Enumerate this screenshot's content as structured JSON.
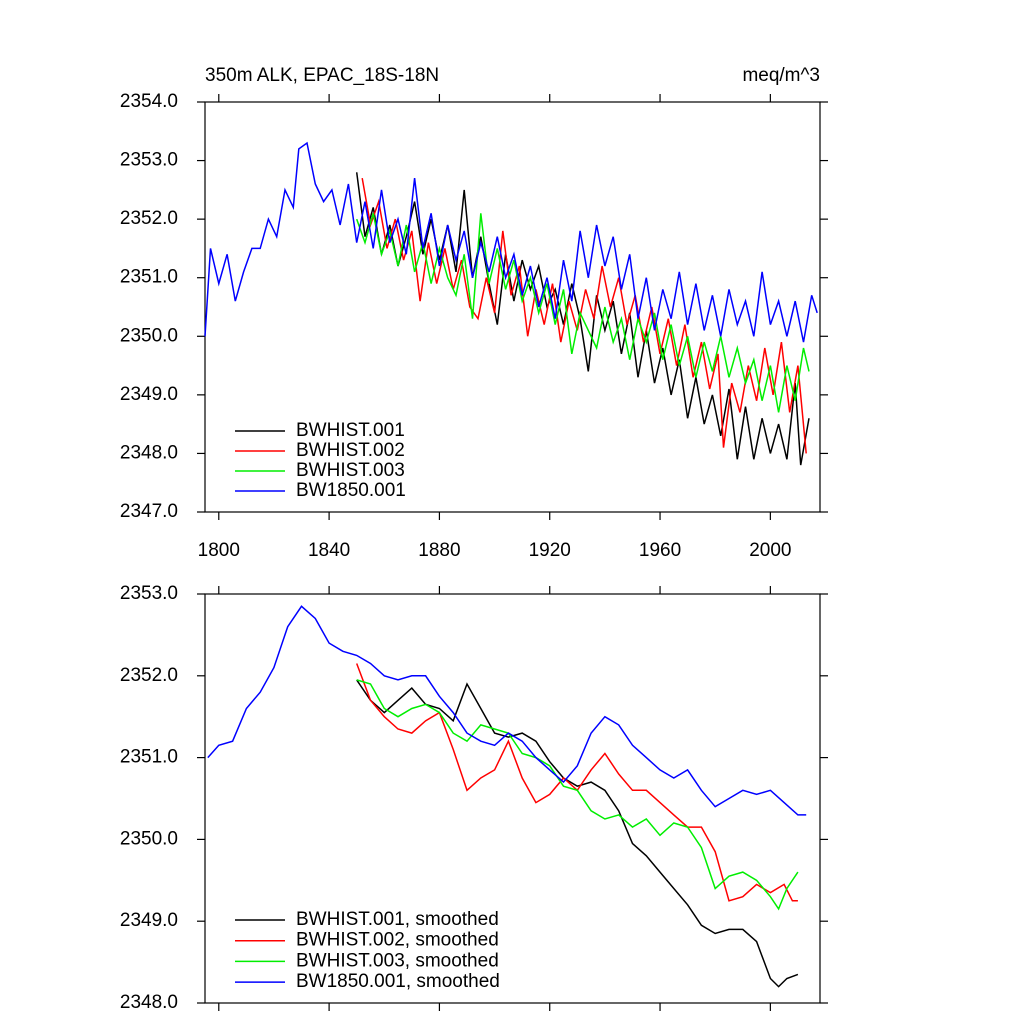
{
  "chart_data": [
    {
      "type": "line",
      "title": "350m ALK, EPAC_18S-18N",
      "units": "meq/m^3",
      "xlim": [
        1795,
        2018
      ],
      "xticks": [
        1800,
        1840,
        1880,
        1920,
        1960,
        2000
      ],
      "xtick_labels": true,
      "ylim": [
        2347,
        2354
      ],
      "yticks": [
        {
          "value": 2347,
          "label": "2347.0"
        },
        {
          "value": 2348,
          "label": "2348.0"
        },
        {
          "value": 2349,
          "label": "2349.0"
        },
        {
          "value": 2350,
          "label": "2350.0"
        },
        {
          "value": 2351,
          "label": "2351.0"
        },
        {
          "value": 2352,
          "label": "2352.0"
        },
        {
          "value": 2353,
          "label": "2353.0"
        },
        {
          "value": 2354,
          "label": "2354.0"
        }
      ],
      "legend": "lower left",
      "series": [
        {
          "name": "BWHIST.001",
          "color": "#000000",
          "x": [
            1850,
            1853,
            1856,
            1859,
            1862,
            1865,
            1868,
            1871,
            1874,
            1877,
            1880,
            1883,
            1886,
            1889,
            1892,
            1895,
            1898,
            1901,
            1904,
            1907,
            1910,
            1913,
            1916,
            1919,
            1922,
            1925,
            1928,
            1931,
            1934,
            1937,
            1940,
            1943,
            1946,
            1949,
            1952,
            1955,
            1958,
            1961,
            1964,
            1967,
            1970,
            1973,
            1976,
            1979,
            1982,
            1985,
            1988,
            1991,
            1994,
            1997,
            2000,
            2003,
            2006,
            2009,
            2011,
            2014
          ],
          "values": [
            2352.8,
            2351.7,
            2352.2,
            2351.4,
            2351.9,
            2351.2,
            2351.7,
            2352.3,
            2351.4,
            2352.0,
            2351.3,
            2351.9,
            2351.1,
            2352.5,
            2351.0,
            2351.7,
            2350.9,
            2350.2,
            2351.4,
            2350.6,
            2351.3,
            2350.8,
            2351.2,
            2350.5,
            2350.8,
            2350.2,
            2350.9,
            2350.3,
            2349.4,
            2350.7,
            2350.1,
            2350.6,
            2349.7,
            2350.4,
            2349.3,
            2350.1,
            2349.2,
            2349.8,
            2349.0,
            2349.6,
            2348.6,
            2349.3,
            2348.5,
            2349.0,
            2348.3,
            2349.1,
            2347.9,
            2348.8,
            2347.9,
            2348.6,
            2348.0,
            2348.5,
            2347.9,
            2349.2,
            2347.8,
            2348.6
          ]
        },
        {
          "name": "BWHIST.002",
          "color": "#ff0000",
          "x": [
            1852,
            1855,
            1858,
            1861,
            1864,
            1867,
            1870,
            1873,
            1876,
            1879,
            1882,
            1885,
            1888,
            1891,
            1894,
            1897,
            1900,
            1903,
            1906,
            1909,
            1912,
            1915,
            1918,
            1921,
            1924,
            1927,
            1930,
            1933,
            1936,
            1939,
            1942,
            1945,
            1948,
            1951,
            1954,
            1957,
            1960,
            1963,
            1966,
            1969,
            1972,
            1975,
            1978,
            1981,
            1983,
            1986,
            1989,
            1992,
            1995,
            1998,
            2001,
            2004,
            2007,
            2010,
            2013
          ],
          "values": [
            2352.7,
            2351.9,
            2352.3,
            2351.5,
            2352.0,
            2351.3,
            2351.8,
            2350.6,
            2351.6,
            2350.9,
            2351.5,
            2350.8,
            2351.3,
            2350.5,
            2350.3,
            2351.0,
            2350.4,
            2351.8,
            2350.7,
            2351.2,
            2350.0,
            2350.8,
            2350.2,
            2350.9,
            2349.9,
            2350.6,
            2350.1,
            2350.8,
            2350.3,
            2351.2,
            2350.5,
            2351.0,
            2350.2,
            2350.7,
            2349.9,
            2350.5,
            2349.7,
            2350.3,
            2349.5,
            2350.2,
            2349.3,
            2349.9,
            2349.1,
            2349.7,
            2348.1,
            2349.2,
            2348.7,
            2349.5,
            2348.9,
            2349.8,
            2349.0,
            2349.9,
            2348.7,
            2349.5,
            2348.0
          ]
        },
        {
          "name": "BWHIST.003",
          "color": "#00ee00",
          "x": [
            1850,
            1853,
            1856,
            1859,
            1862,
            1865,
            1868,
            1871,
            1874,
            1877,
            1880,
            1883,
            1886,
            1889,
            1892,
            1895,
            1898,
            1901,
            1904,
            1907,
            1910,
            1913,
            1916,
            1919,
            1922,
            1925,
            1928,
            1931,
            1934,
            1937,
            1940,
            1943,
            1946,
            1949,
            1952,
            1955,
            1958,
            1961,
            1964,
            1967,
            1970,
            1973,
            1976,
            1979,
            1982,
            1985,
            1988,
            1991,
            1994,
            1997,
            2000,
            2003,
            2006,
            2009,
            2012,
            2014
          ],
          "values": [
            2352.0,
            2351.6,
            2352.1,
            2351.4,
            2351.8,
            2351.2,
            2351.9,
            2351.1,
            2351.6,
            2350.9,
            2351.5,
            2351.0,
            2350.7,
            2351.4,
            2350.3,
            2352.1,
            2350.9,
            2351.5,
            2350.8,
            2351.3,
            2350.6,
            2351.0,
            2350.4,
            2350.9,
            2350.2,
            2350.8,
            2349.7,
            2350.4,
            2350.1,
            2349.8,
            2350.5,
            2349.9,
            2350.3,
            2349.6,
            2350.3,
            2349.9,
            2350.4,
            2349.6,
            2350.2,
            2349.5,
            2350.0,
            2349.3,
            2349.9,
            2349.4,
            2350.0,
            2349.3,
            2349.8,
            2349.2,
            2349.6,
            2348.9,
            2349.5,
            2348.7,
            2349.5,
            2348.9,
            2349.8,
            2349.4
          ]
        },
        {
          "name": "BW1850.001",
          "color": "#0000ff",
          "x": [
            1795,
            1797,
            1800,
            1803,
            1806,
            1809,
            1812,
            1815,
            1818,
            1821,
            1824,
            1827,
            1829,
            1832,
            1835,
            1838,
            1841,
            1844,
            1847,
            1850,
            1853,
            1856,
            1859,
            1862,
            1865,
            1868,
            1871,
            1874,
            1877,
            1880,
            1883,
            1886,
            1889,
            1892,
            1895,
            1898,
            1901,
            1904,
            1907,
            1910,
            1913,
            1916,
            1919,
            1922,
            1925,
            1928,
            1931,
            1934,
            1937,
            1940,
            1943,
            1946,
            1949,
            1952,
            1955,
            1958,
            1961,
            1964,
            1967,
            1970,
            1973,
            1976,
            1979,
            1982,
            1985,
            1988,
            1991,
            1994,
            1997,
            2000,
            2003,
            2006,
            2009,
            2012,
            2015,
            2017
          ],
          "values": [
            2350.0,
            2351.5,
            2350.9,
            2351.4,
            2350.6,
            2351.1,
            2351.5,
            2351.5,
            2352.0,
            2351.7,
            2352.5,
            2352.2,
            2353.2,
            2353.3,
            2352.6,
            2352.3,
            2352.5,
            2351.9,
            2352.6,
            2351.6,
            2352.3,
            2351.5,
            2352.5,
            2351.6,
            2352.0,
            2351.4,
            2352.7,
            2351.5,
            2352.1,
            2351.2,
            2351.9,
            2351.3,
            2351.8,
            2351.0,
            2351.6,
            2351.1,
            2351.7,
            2351.0,
            2351.4,
            2350.7,
            2351.2,
            2350.5,
            2351.0,
            2350.3,
            2351.3,
            2350.6,
            2351.8,
            2351.0,
            2351.9,
            2351.2,
            2351.7,
            2350.8,
            2351.4,
            2350.3,
            2351.0,
            2350.1,
            2350.8,
            2350.3,
            2351.1,
            2350.2,
            2350.9,
            2350.1,
            2350.7,
            2350.0,
            2350.8,
            2350.2,
            2350.6,
            2350.0,
            2351.1,
            2350.2,
            2350.6,
            2350.0,
            2350.6,
            2349.9,
            2350.7,
            2350.4
          ]
        }
      ]
    },
    {
      "type": "line",
      "xlim": [
        1795,
        2018
      ],
      "xticks": [
        1800,
        1840,
        1880,
        1920,
        1960,
        2000
      ],
      "xtick_labels": false,
      "ylim": [
        2348,
        2353
      ],
      "yticks": [
        {
          "value": 2348,
          "label": "2348.0"
        },
        {
          "value": 2349,
          "label": "2349.0"
        },
        {
          "value": 2350,
          "label": "2350.0"
        },
        {
          "value": 2351,
          "label": "2351.0"
        },
        {
          "value": 2352,
          "label": "2352.0"
        },
        {
          "value": 2353,
          "label": "2353.0"
        }
      ],
      "legend": "lower left",
      "series": [
        {
          "name": "BWHIST.001, smoothed",
          "color": "#000000",
          "x": [
            1850,
            1855,
            1860,
            1865,
            1870,
            1875,
            1880,
            1885,
            1890,
            1895,
            1900,
            1905,
            1910,
            1915,
            1920,
            1925,
            1930,
            1935,
            1940,
            1945,
            1950,
            1955,
            1960,
            1965,
            1970,
            1975,
            1980,
            1985,
            1990,
            1995,
            2000,
            2003,
            2006,
            2010
          ],
          "values": [
            2351.95,
            2351.7,
            2351.55,
            2351.7,
            2351.85,
            2351.65,
            2351.6,
            2351.45,
            2351.9,
            2351.6,
            2351.3,
            2351.25,
            2351.3,
            2351.2,
            2350.95,
            2350.75,
            2350.65,
            2350.7,
            2350.6,
            2350.35,
            2349.95,
            2349.8,
            2349.6,
            2349.4,
            2349.2,
            2348.95,
            2348.85,
            2348.9,
            2348.9,
            2348.75,
            2348.3,
            2348.2,
            2348.3,
            2348.35
          ]
        },
        {
          "name": "BWHIST.002, smoothed",
          "color": "#ff0000",
          "x": [
            1850,
            1855,
            1860,
            1865,
            1870,
            1875,
            1880,
            1885,
            1890,
            1895,
            1900,
            1905,
            1910,
            1915,
            1920,
            1925,
            1930,
            1935,
            1940,
            1945,
            1950,
            1955,
            1960,
            1965,
            1970,
            1975,
            1980,
            1985,
            1990,
            1995,
            2000,
            2005,
            2008,
            2010
          ],
          "values": [
            2352.15,
            2351.7,
            2351.5,
            2351.35,
            2351.3,
            2351.45,
            2351.55,
            2351.1,
            2350.6,
            2350.75,
            2350.85,
            2351.2,
            2350.75,
            2350.45,
            2350.55,
            2350.75,
            2350.6,
            2350.85,
            2351.05,
            2350.8,
            2350.6,
            2350.6,
            2350.45,
            2350.3,
            2350.15,
            2350.15,
            2349.85,
            2349.25,
            2349.3,
            2349.45,
            2349.35,
            2349.45,
            2349.25,
            2349.25
          ]
        },
        {
          "name": "BWHIST.003, smoothed",
          "color": "#00ee00",
          "x": [
            1850,
            1855,
            1860,
            1865,
            1870,
            1875,
            1880,
            1885,
            1890,
            1895,
            1900,
            1905,
            1910,
            1915,
            1920,
            1925,
            1930,
            1935,
            1940,
            1945,
            1950,
            1955,
            1960,
            1965,
            1970,
            1975,
            1980,
            1985,
            1990,
            1995,
            2000,
            2003,
            2006,
            2010
          ],
          "values": [
            2351.95,
            2351.9,
            2351.6,
            2351.5,
            2351.6,
            2351.65,
            2351.55,
            2351.3,
            2351.2,
            2351.4,
            2351.35,
            2351.3,
            2351.05,
            2351.0,
            2350.9,
            2350.65,
            2350.6,
            2350.35,
            2350.25,
            2350.3,
            2350.15,
            2350.25,
            2350.05,
            2350.2,
            2350.15,
            2349.9,
            2349.4,
            2349.55,
            2349.6,
            2349.5,
            2349.3,
            2349.15,
            2349.4,
            2349.6
          ]
        },
        {
          "name": "BW1850.001, smoothed",
          "color": "#0000ff",
          "x": [
            1796,
            1800,
            1805,
            1810,
            1815,
            1820,
            1825,
            1830,
            1835,
            1840,
            1845,
            1850,
            1855,
            1860,
            1865,
            1870,
            1875,
            1880,
            1885,
            1890,
            1895,
            1900,
            1905,
            1910,
            1915,
            1920,
            1925,
            1930,
            1935,
            1940,
            1945,
            1950,
            1955,
            1960,
            1965,
            1970,
            1975,
            1980,
            1985,
            1990,
            1995,
            2000,
            2005,
            2010,
            2013
          ],
          "values": [
            2351.0,
            2351.15,
            2351.2,
            2351.6,
            2351.8,
            2352.1,
            2352.6,
            2352.85,
            2352.7,
            2352.4,
            2352.3,
            2352.25,
            2352.15,
            2352.0,
            2351.95,
            2352.0,
            2352.0,
            2351.75,
            2351.55,
            2351.3,
            2351.2,
            2351.15,
            2351.3,
            2351.2,
            2351.0,
            2350.85,
            2350.7,
            2350.9,
            2351.3,
            2351.5,
            2351.4,
            2351.15,
            2351.0,
            2350.85,
            2350.75,
            2350.85,
            2350.6,
            2350.4,
            2350.5,
            2350.6,
            2350.55,
            2350.6,
            2350.45,
            2350.3,
            2350.3
          ]
        }
      ]
    }
  ]
}
